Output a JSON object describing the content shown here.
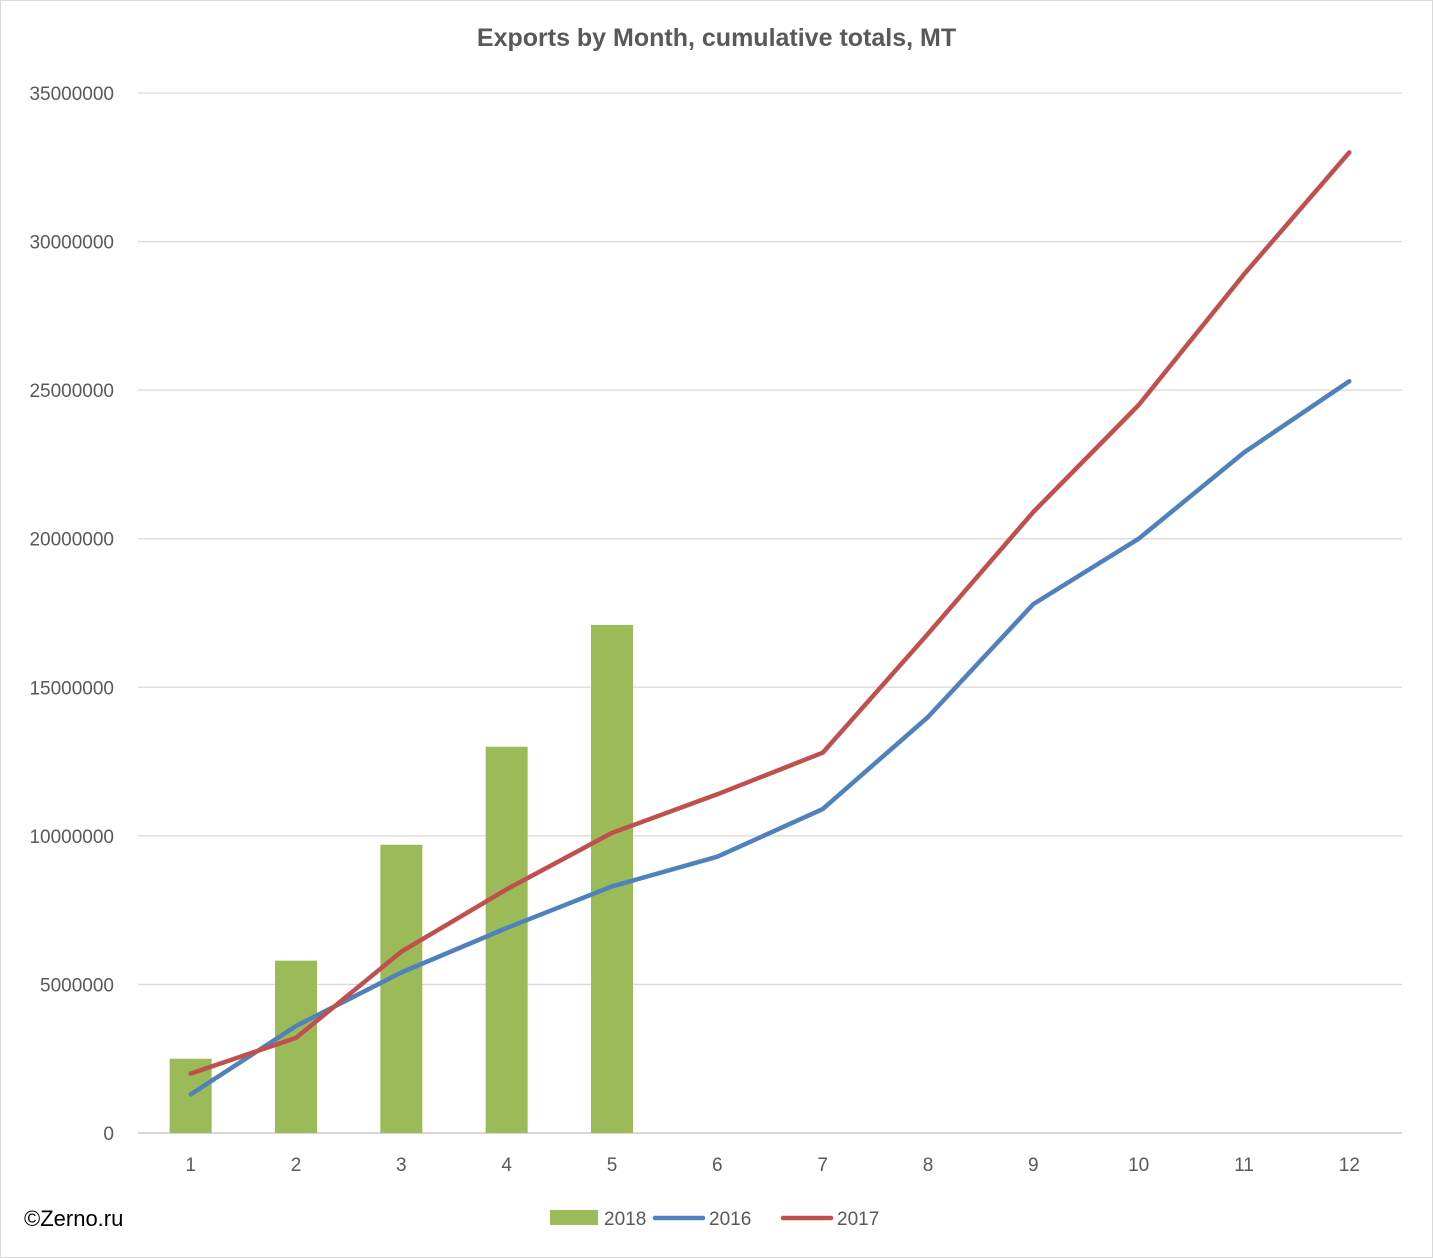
{
  "watermark": "©Zerno.ru",
  "colors": {
    "grid": "#d9d9d9",
    "axis": "#bfbfbf",
    "text": "#595959"
  },
  "chart_data": {
    "type": "bar+line",
    "title": "Exports by Month, cumulative totals, MT",
    "xlabel": "",
    "ylabel": "",
    "categories": [
      "1",
      "2",
      "3",
      "4",
      "5",
      "6",
      "7",
      "8",
      "9",
      "10",
      "11",
      "12"
    ],
    "ylim": [
      0,
      35000000
    ],
    "yticks": [
      "0",
      "5000000",
      "10000000",
      "15000000",
      "20000000",
      "25000000",
      "30000000",
      "35000000"
    ],
    "grid": true,
    "legend": "bottom",
    "series": [
      {
        "name": "2018",
        "kind": "bar",
        "color": "#9bbb59",
        "values": [
          2500000,
          5800000,
          9700000,
          13000000,
          17100000,
          null,
          null,
          null,
          null,
          null,
          null,
          null
        ]
      },
      {
        "name": "2016",
        "kind": "line",
        "color": "#4f81bd",
        "values": [
          1300000,
          3600000,
          5400000,
          6900000,
          8300000,
          9300000,
          10900000,
          14000000,
          17800000,
          20000000,
          22900000,
          25300000
        ]
      },
      {
        "name": "2017",
        "kind": "line",
        "color": "#c0504d",
        "values": [
          2000000,
          3200000,
          6100000,
          8200000,
          10100000,
          11400000,
          12800000,
          16800000,
          20900000,
          24500000,
          28900000,
          33000000
        ]
      }
    ]
  }
}
